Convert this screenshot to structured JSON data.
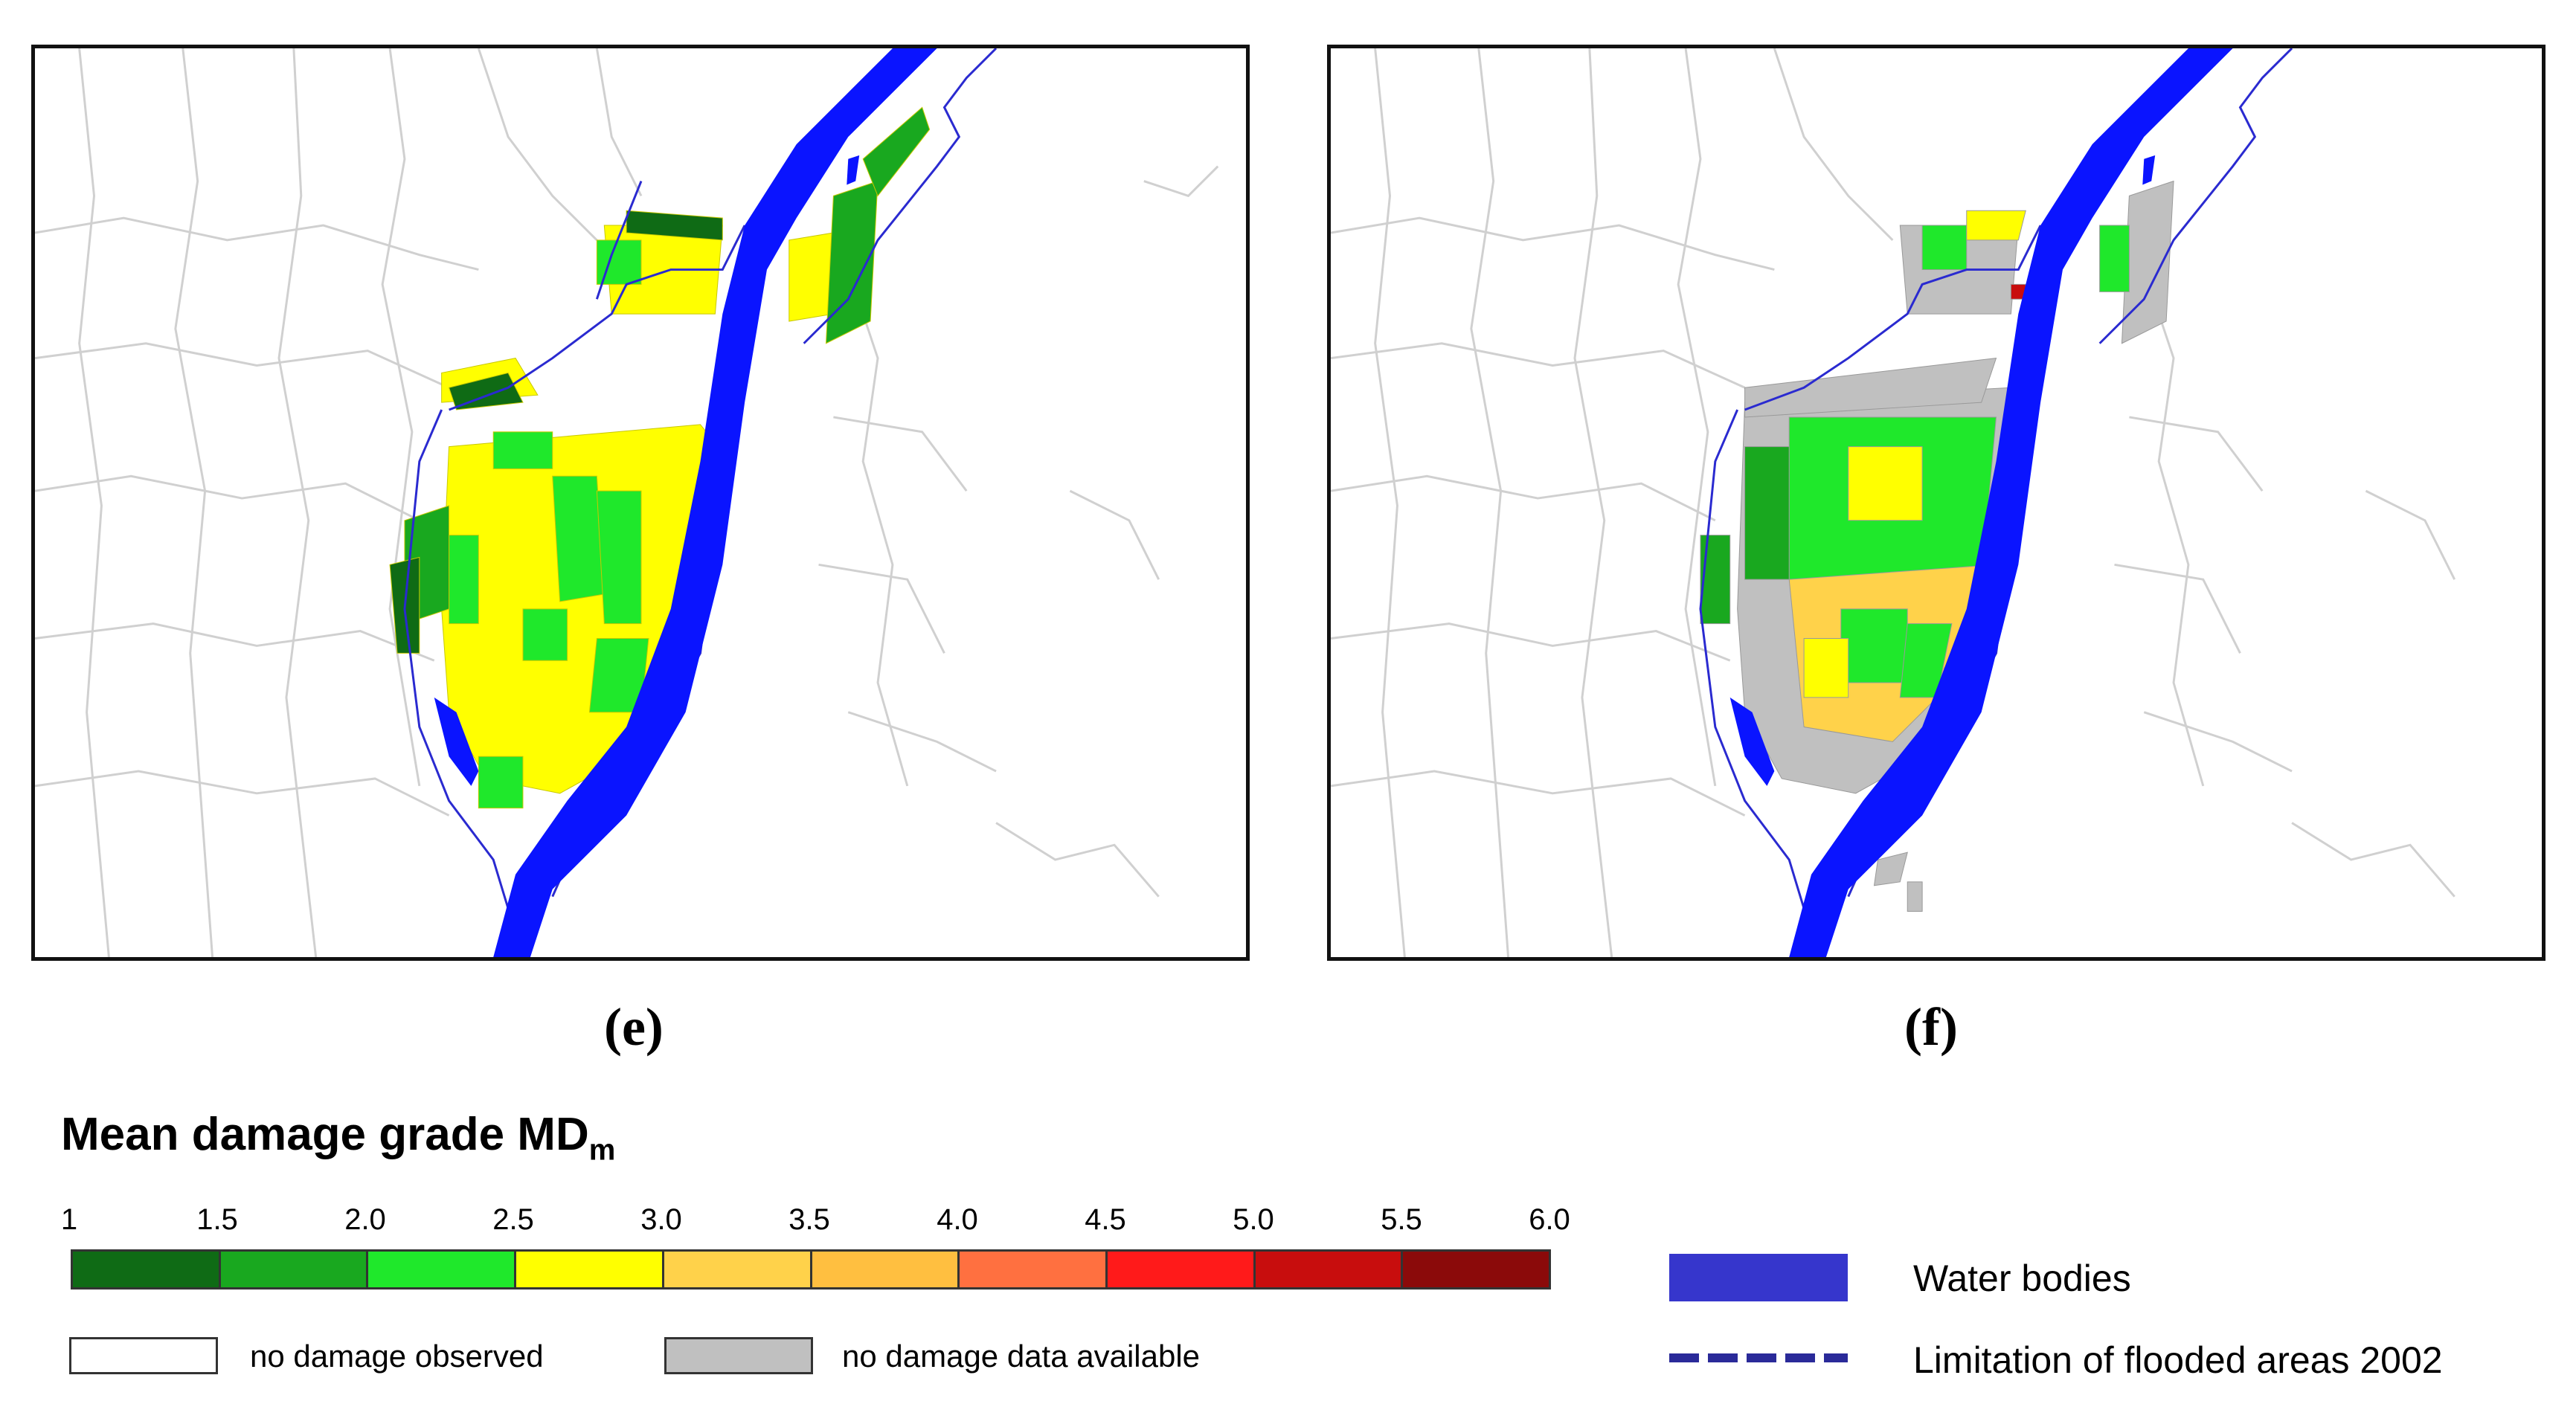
{
  "panels": [
    {
      "id": "e",
      "caption": "(e)"
    },
    {
      "id": "f",
      "caption": "(f)"
    }
  ],
  "legend": {
    "title": "Mean damage grade MD",
    "title_sub": "m",
    "ticks": [
      "1",
      "1.5",
      "2.0",
      "2.5",
      "3.0",
      "3.5",
      "4.0",
      "4.5",
      "5.0",
      "5.5",
      "6.0"
    ],
    "ramp_colors": [
      "#0f6b15",
      "#19a81f",
      "#1fe82b",
      "#ffff00",
      "#ffd24a",
      "#ffbf40",
      "#ff7040",
      "#ff1a1a",
      "#c80d0d",
      "#8b0a0a"
    ],
    "no_damage_label": "no damage observed",
    "no_data_label": "no damage data available",
    "no_data_color": "#c0c0c0",
    "water_label": "Water bodies",
    "water_color": "#3636cc",
    "flood_label": "Limitation of flooded areas 2002",
    "flood_color": "#2a2a99"
  }
}
